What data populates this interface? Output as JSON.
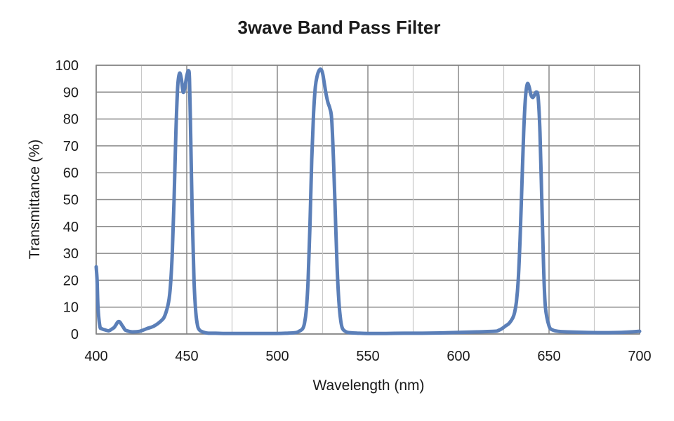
{
  "chart_data": {
    "type": "line",
    "title": "3wave Band Pass Filter",
    "xlabel": "Wavelength  (nm)",
    "ylabel": "Transmittance  (%)",
    "xlim": [
      400,
      700
    ],
    "ylim": [
      0,
      100
    ],
    "x_ticks": [
      400,
      450,
      500,
      550,
      600,
      650,
      700
    ],
    "y_ticks": [
      0,
      10,
      20,
      30,
      40,
      50,
      60,
      70,
      80,
      90,
      100
    ],
    "x_minor_gridlines": [
      425,
      475,
      525,
      575,
      625,
      675
    ],
    "grid": true,
    "legend": "none",
    "line_color": "#5b7fb8",
    "series": [
      {
        "x": [
          400,
          400.5,
          401,
          402,
          403,
          405,
          407,
          409,
          410,
          411,
          412,
          413,
          414,
          415,
          416,
          418,
          420,
          424,
          428,
          432,
          436,
          438,
          440,
          441,
          442,
          443,
          444,
          445,
          446,
          447,
          448,
          449,
          450,
          451,
          451.5,
          452,
          453,
          454,
          455,
          456,
          457,
          458,
          460,
          462,
          466,
          470,
          480,
          490,
          500,
          505,
          510,
          512,
          514,
          515,
          516,
          517,
          518,
          519,
          520,
          521,
          522,
          523,
          524,
          525,
          526,
          527,
          528,
          529,
          530,
          531,
          532,
          533,
          534,
          535,
          536,
          538,
          540,
          545,
          550,
          560,
          570,
          580,
          590,
          600,
          610,
          620,
          622,
          624,
          626,
          628,
          630,
          631,
          632,
          633,
          634,
          635,
          636,
          637,
          638,
          639,
          640,
          641,
          642,
          643,
          644,
          645,
          646,
          647,
          648,
          650,
          652,
          655,
          660,
          670,
          680,
          690,
          700
        ],
        "y": [
          25,
          20,
          10,
          3,
          2,
          1.5,
          1.2,
          2,
          2.5,
          3.5,
          4.5,
          4.5,
          3.5,
          2.5,
          1.5,
          1,
          0.8,
          1,
          2,
          3,
          5,
          7,
          12,
          18,
          30,
          50,
          75,
          92,
          97,
          95,
          90,
          92,
          96,
          98,
          95,
          80,
          45,
          20,
          8,
          3,
          1.5,
          1,
          0.5,
          0.3,
          0.3,
          0.2,
          0.2,
          0.2,
          0.2,
          0.3,
          0.5,
          1,
          2,
          4,
          9,
          20,
          40,
          65,
          82,
          92,
          96,
          98,
          98.5,
          97,
          93,
          89,
          86,
          84,
          80,
          65,
          45,
          25,
          12,
          5,
          2,
          0.8,
          0.5,
          0.3,
          0.2,
          0.2,
          0.3,
          0.3,
          0.4,
          0.6,
          0.8,
          1,
          1.3,
          2,
          3,
          4,
          6,
          8,
          12,
          20,
          35,
          55,
          75,
          88,
          93,
          92,
          89,
          88,
          89,
          90,
          88,
          75,
          50,
          25,
          10,
          3,
          1.5,
          1,
          0.8,
          0.6,
          0.5,
          0.6,
          1
        ]
      }
    ]
  }
}
